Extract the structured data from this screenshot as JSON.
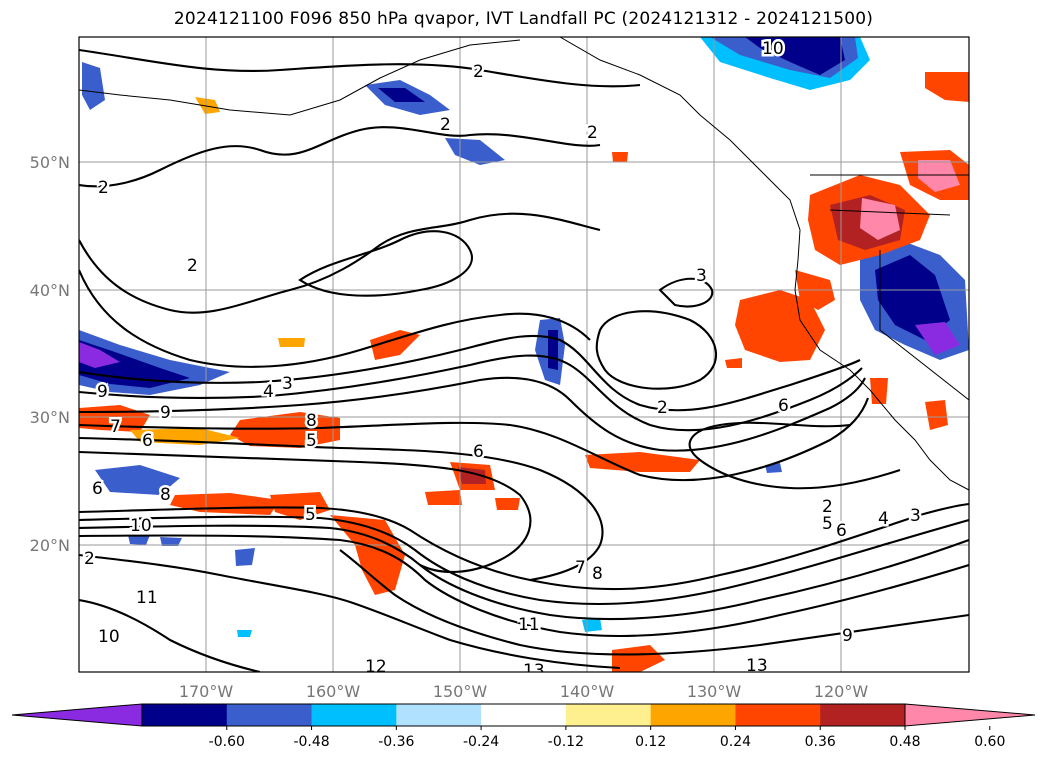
{
  "title": "2024121100 F096 850 hPa qvapor, IVT Landfall PC (2024121312 - 2024121500)",
  "axes": {
    "x_ticks": [
      "170°W",
      "160°W",
      "150°W",
      "140°W",
      "130°W",
      "120°W"
    ],
    "y_ticks": [
      "50°N",
      "40°N",
      "30°N",
      "20°N"
    ]
  },
  "colorbar": {
    "colors": [
      "#8a2be2",
      "#00008b",
      "#3a5fcd",
      "#00bfff",
      "#b0e2ff",
      "#ffffff",
      "#fff08f",
      "#ffa500",
      "#ff4500",
      "#b22222",
      "#ff88aa"
    ],
    "tick_labels": [
      "-0.60",
      "-0.48",
      "-0.36",
      "-0.24",
      "-0.12",
      "0.12",
      "0.24",
      "0.36",
      "0.48",
      "0.60"
    ],
    "extend": "both"
  },
  "contour_labels": [
    "2",
    "2",
    "2",
    "2",
    "2",
    "2",
    "3",
    "3",
    "4",
    "9",
    "9",
    "7",
    "6",
    "8",
    "5",
    "6",
    "6",
    "8",
    "5",
    "10",
    "2",
    "11",
    "10",
    "12",
    "13",
    "2",
    "5",
    "6",
    "4",
    "3",
    "6",
    "7",
    "8",
    "11",
    "9",
    "13",
    "10"
  ]
}
